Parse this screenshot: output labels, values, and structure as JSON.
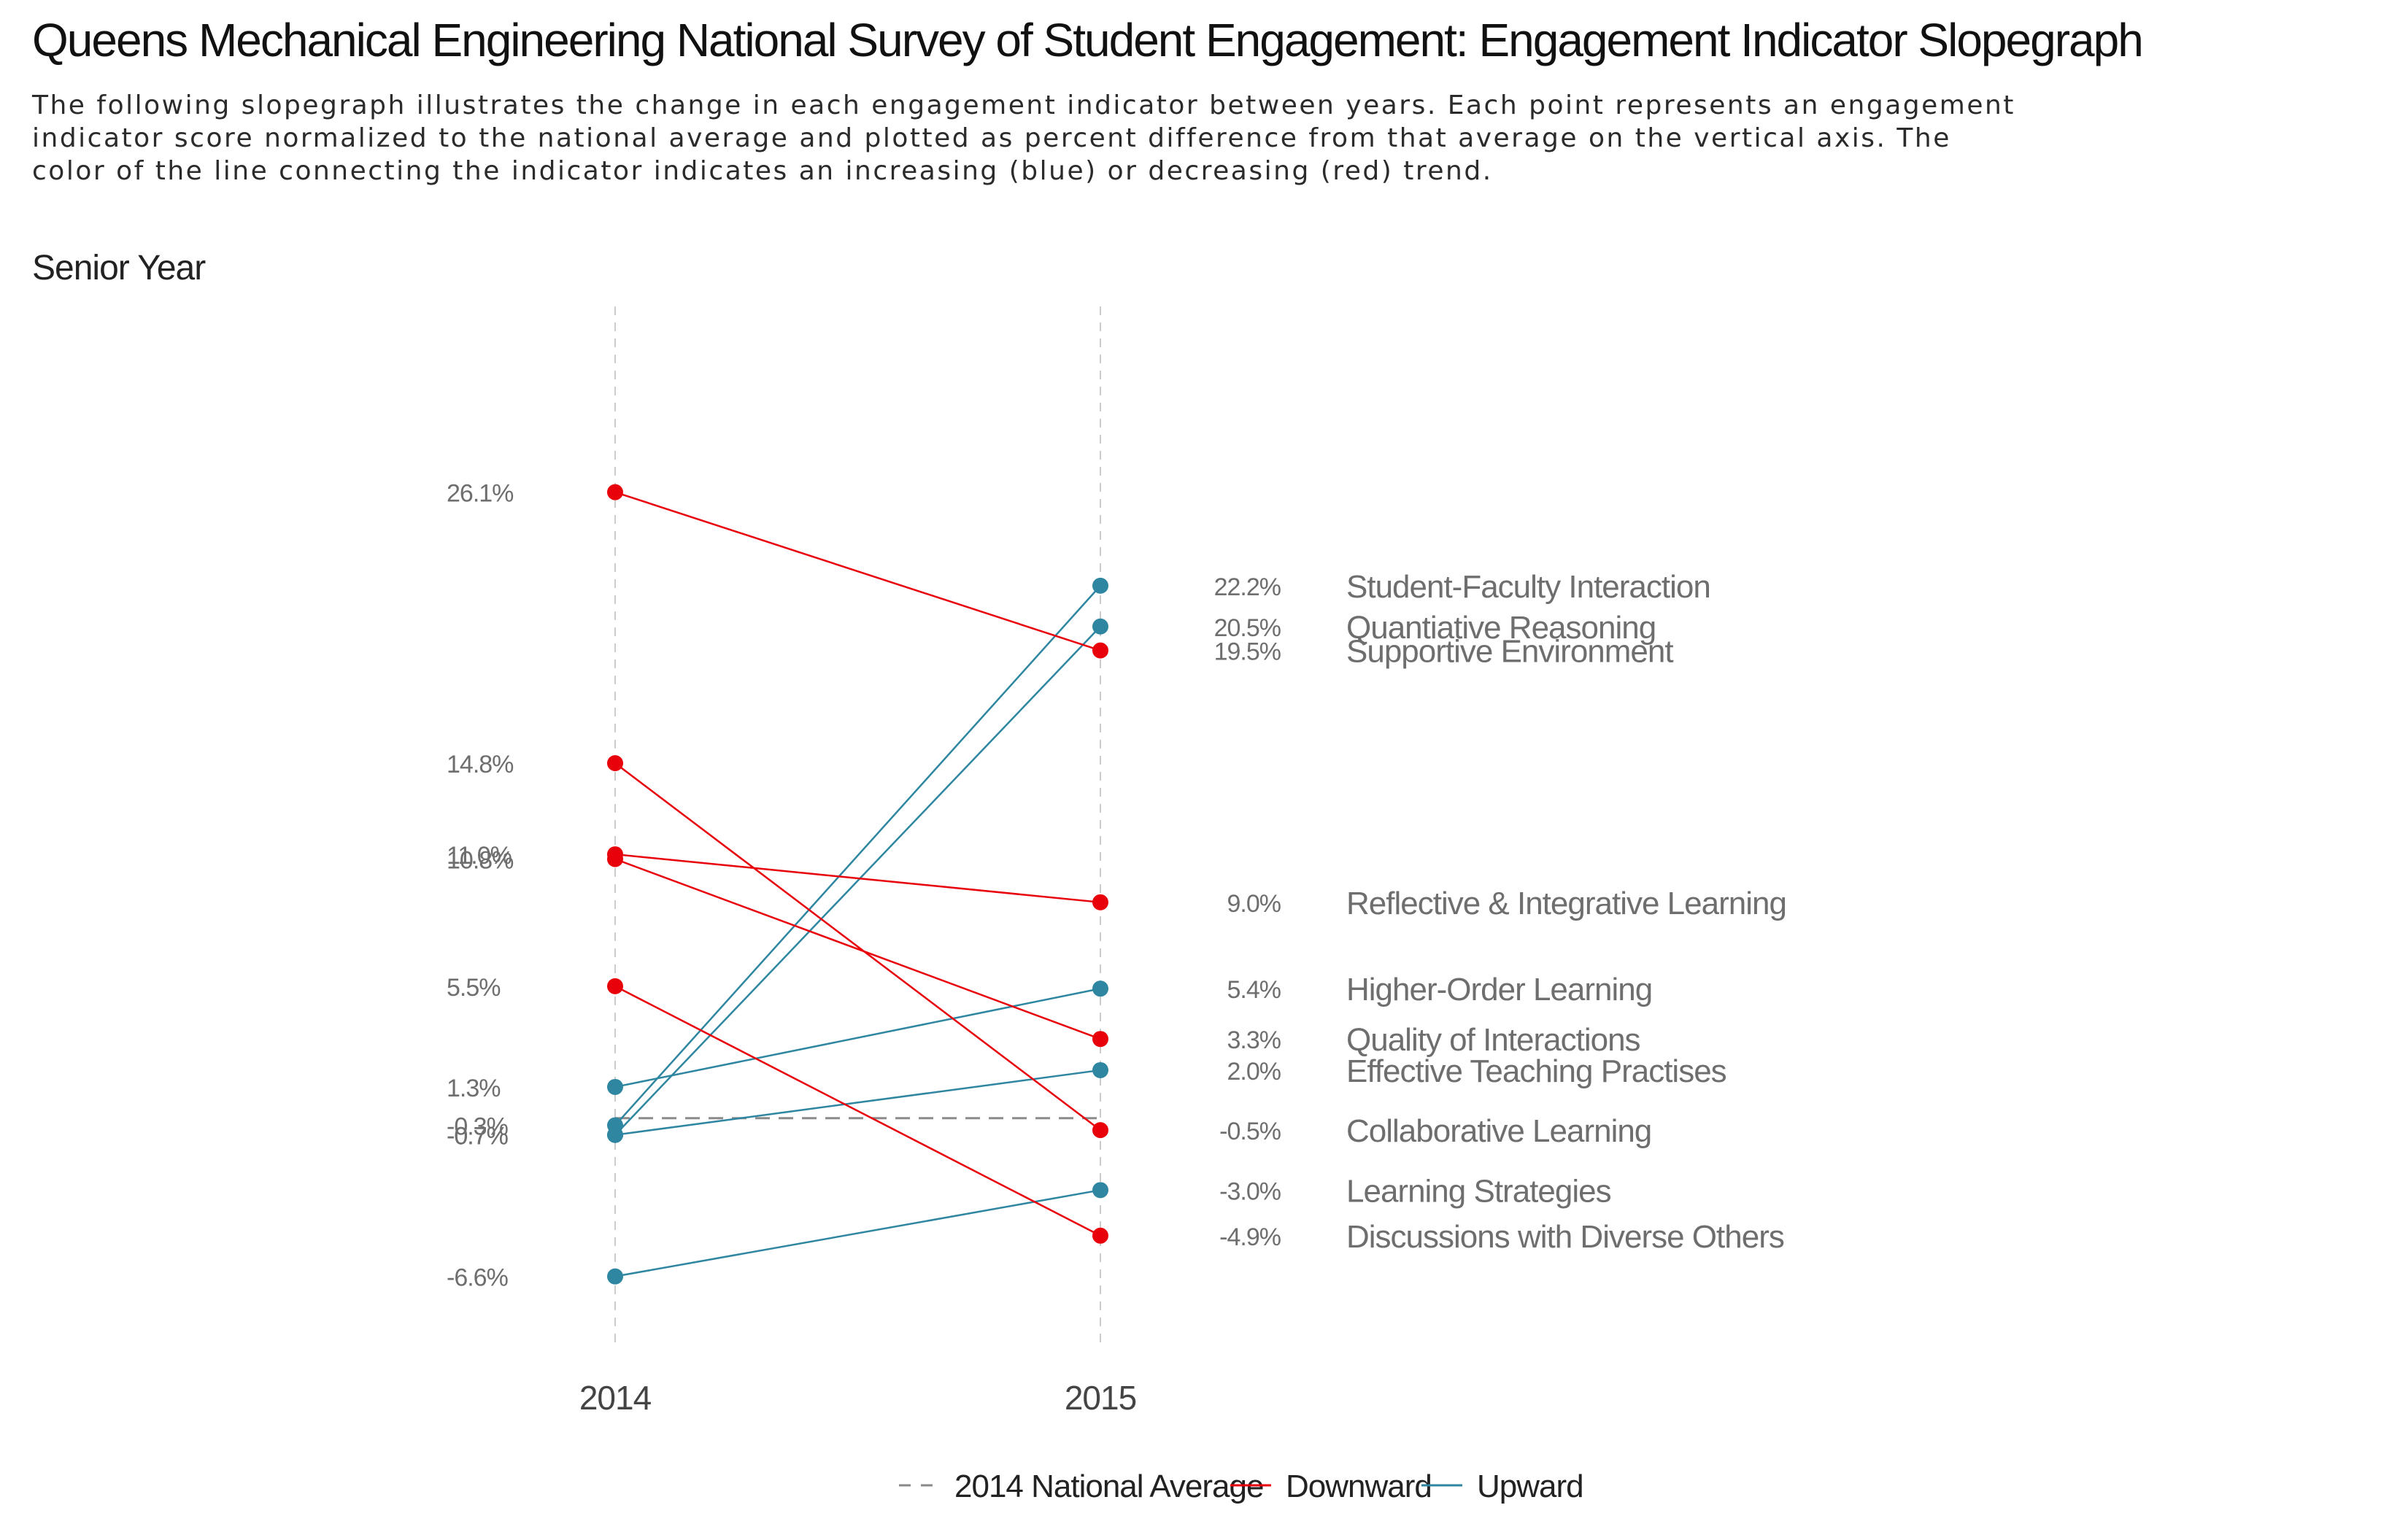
{
  "page": {
    "title": "Queens Mechanical Engineering National Survey of Student Engagement: Engagement Indicator Slopegraph",
    "subtitle": "The following slopegraph illustrates the change in each engagement indicator between years. Each point represents an engagement indicator score normalized to the national average and plotted as percent difference from that average on the vertical axis. The color of the line connecting the indicator indicates an increasing (blue) or decreasing (red) trend.",
    "panel_title": "Senior Year"
  },
  "colors": {
    "up": "#2e86a1",
    "down": "#e8000b",
    "reference": "#8a8a8a",
    "gridline": "#cccccc",
    "value_label": "#6e6e6e",
    "axis_text": "#444444",
    "legend_text": "#222222"
  },
  "chart_data": {
    "type": "slopegraph",
    "x": [
      "2014",
      "2015"
    ],
    "ylim": [
      -9.5,
      30.5
    ],
    "reference_line": {
      "name": "2014 National Average",
      "value": 0
    },
    "legend": [
      "2014 National Average",
      "Downward",
      "Upward"
    ],
    "series": [
      {
        "name": "Student-Faculty Interaction",
        "values": [
          -0.3,
          22.2
        ],
        "value_labels": [
          "-0.3%",
          "22.2%"
        ],
        "trend": "up"
      },
      {
        "name": "Quantiative Reasoning",
        "values": [
          -0.7,
          20.5
        ],
        "value_labels": [
          "-0.7%",
          "20.5%"
        ],
        "trend": "up"
      },
      {
        "name": "Supportive Environment",
        "values": [
          26.1,
          19.5
        ],
        "value_labels": [
          "26.1%",
          "19.5%"
        ],
        "trend": "down"
      },
      {
        "name": "Reflective & Integrative Learning",
        "values": [
          11.0,
          9.0
        ],
        "value_labels": [
          "11.0%",
          "9.0%"
        ],
        "trend": "down"
      },
      {
        "name": "Higher-Order Learning",
        "values": [
          1.3,
          5.4
        ],
        "value_labels": [
          "1.3%",
          "5.4%"
        ],
        "trend": "up"
      },
      {
        "name": "Quality of Interactions",
        "values": [
          10.8,
          3.3
        ],
        "value_labels": [
          "10.8%",
          "3.3%"
        ],
        "trend": "down"
      },
      {
        "name": "Effective Teaching Practises",
        "values": [
          -0.7,
          2.0
        ],
        "value_labels": [
          "-0.7%",
          "2.0%"
        ],
        "trend": "up"
      },
      {
        "name": "Collaborative Learning",
        "values": [
          14.8,
          -0.5
        ],
        "value_labels": [
          "14.8%",
          "-0.5%"
        ],
        "trend": "down"
      },
      {
        "name": "Learning Strategies",
        "values": [
          -6.6,
          -3.0
        ],
        "value_labels": [
          "-6.6%",
          "-3.0%"
        ],
        "trend": "up"
      },
      {
        "name": "Discussions with Diverse Others",
        "values": [
          5.5,
          -4.9
        ],
        "value_labels": [
          "5.5%",
          "-4.9%"
        ],
        "trend": "down"
      }
    ]
  }
}
